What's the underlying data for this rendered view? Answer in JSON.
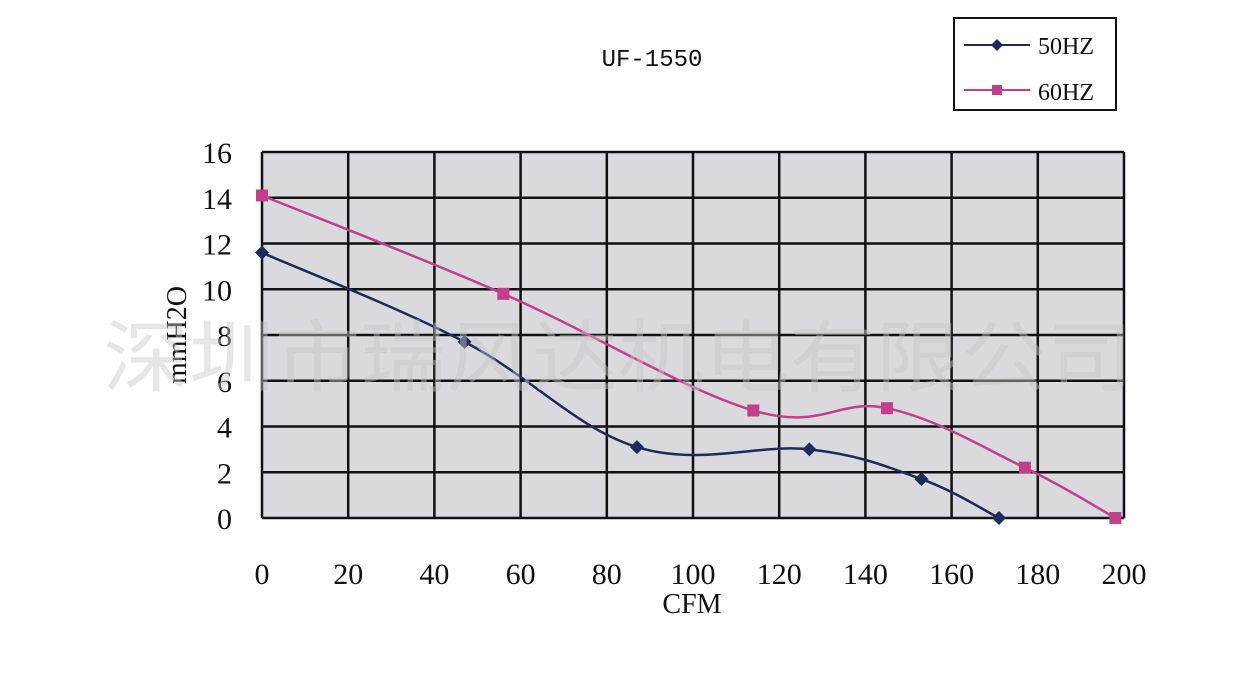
{
  "chart_data": {
    "type": "line",
    "title": "UF-1550",
    "xlabel": "CFM",
    "ylabel": "mmH2O",
    "xlim": [
      0,
      200
    ],
    "ylim": [
      0,
      16
    ],
    "x_ticks": [
      "0",
      "20",
      "40",
      "60",
      "80",
      "100",
      "120",
      "140",
      "160",
      "180",
      "200"
    ],
    "y_ticks": [
      "0",
      "2",
      "4",
      "6",
      "8",
      "10",
      "12",
      "14",
      "16"
    ],
    "grid": true,
    "legend_position": "top-right",
    "series": [
      {
        "name": "50HZ",
        "color": "#1e2a5c",
        "marker": "diamond",
        "points": [
          [
            0,
            11.6
          ],
          [
            47,
            7.7
          ],
          [
            87,
            3.1
          ],
          [
            127,
            3.0
          ],
          [
            153,
            1.7
          ],
          [
            171,
            0
          ]
        ]
      },
      {
        "name": "60HZ",
        "color": "#c2408a",
        "marker": "square",
        "points": [
          [
            0,
            14.1
          ],
          [
            56,
            9.8
          ],
          [
            114,
            4.7
          ],
          [
            145,
            4.8
          ],
          [
            177,
            2.2
          ],
          [
            198,
            0
          ]
        ]
      }
    ]
  },
  "watermark": "深圳市瑞风达机电有限公司"
}
